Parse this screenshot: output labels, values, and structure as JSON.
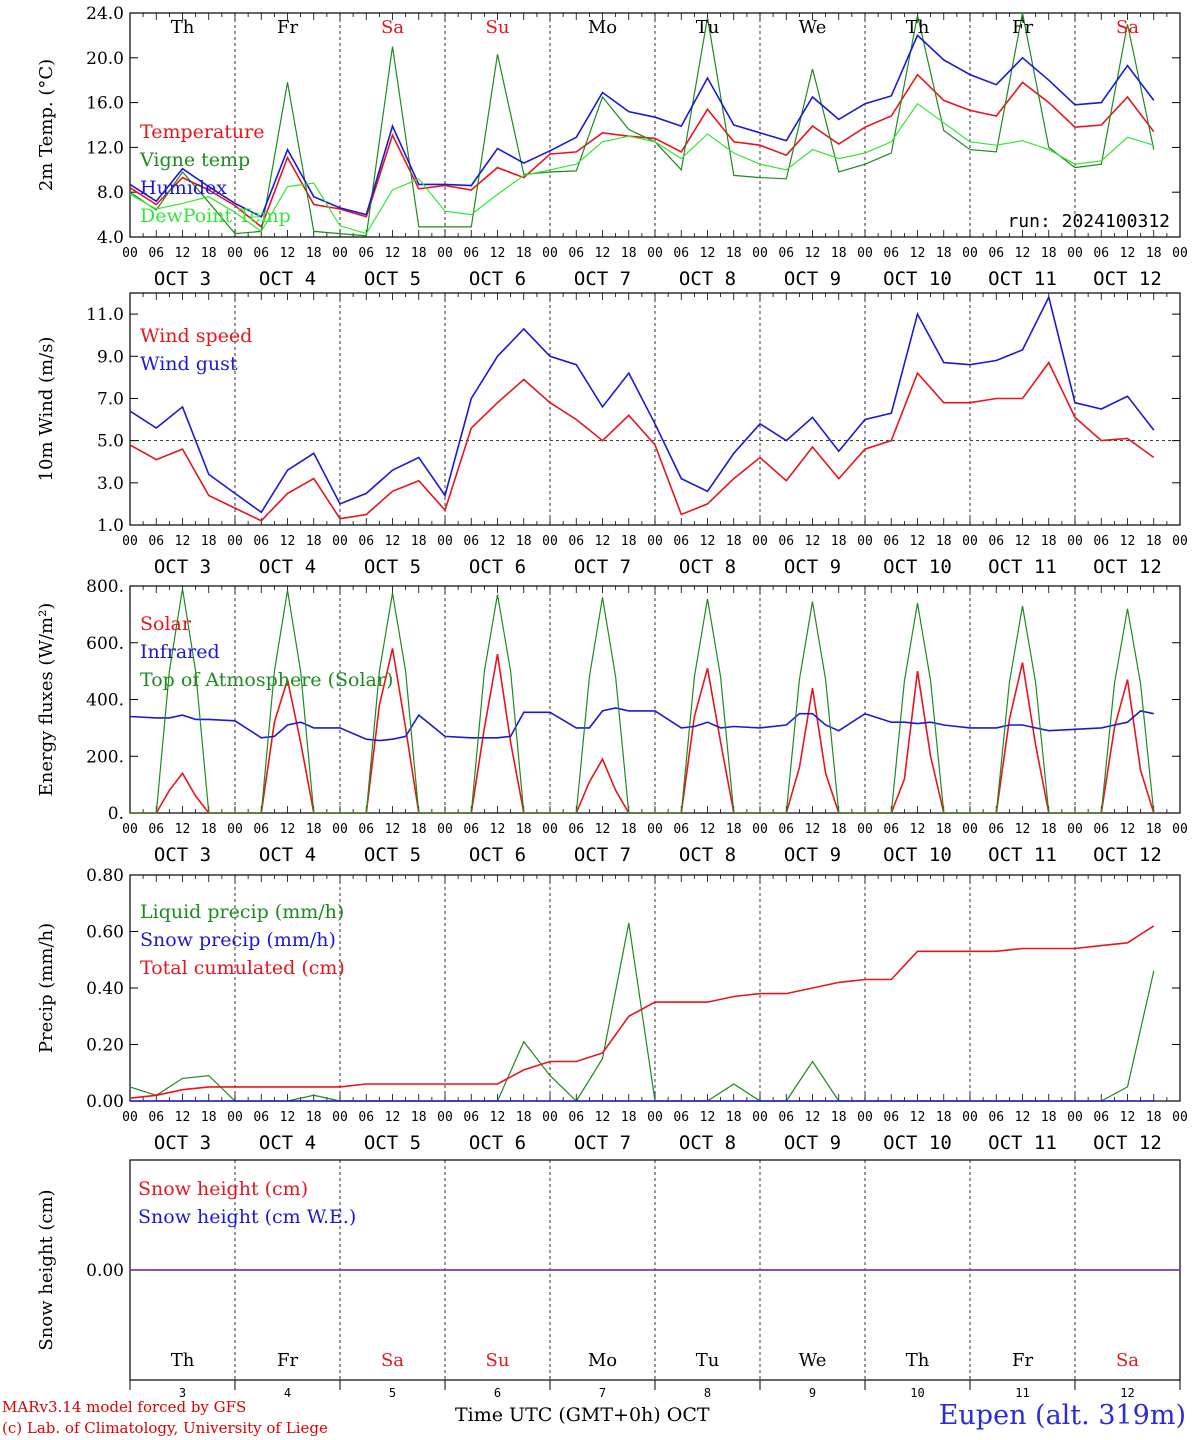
{
  "colors": {
    "red": "#e8141e",
    "darkgreen": "#1e8a1e",
    "blue": "#1a1ad6",
    "lightgreen": "#33e633",
    "purple": "#7a3aa0",
    "redday": "#e8141e"
  },
  "days": [
    {
      "abbr": "Th",
      "weekend": false,
      "date": "3"
    },
    {
      "abbr": "Fr",
      "weekend": false,
      "date": "4"
    },
    {
      "abbr": "Sa",
      "weekend": true,
      "date": "5"
    },
    {
      "abbr": "Su",
      "weekend": true,
      "date": "6"
    },
    {
      "abbr": "Mo",
      "weekend": false,
      "date": "7"
    },
    {
      "abbr": "Tu",
      "weekend": false,
      "date": "8"
    },
    {
      "abbr": "We",
      "weekend": false,
      "date": "9"
    },
    {
      "abbr": "Th",
      "weekend": false,
      "date": "10"
    },
    {
      "abbr": "Fr",
      "weekend": false,
      "date": "11"
    },
    {
      "abbr": "Sa",
      "weekend": true,
      "date": "12"
    }
  ],
  "month_label": "OCT",
  "hour_labels": [
    "00",
    "06",
    "12",
    "18"
  ],
  "chart_data": [
    {
      "type": "line",
      "ylabel": "2m Temp. (°C)",
      "ylim": [
        4,
        24
      ],
      "yticks": [
        "4.0",
        "8.0",
        "12.0",
        "16.0",
        "20.0",
        "24.0"
      ],
      "annotation": "run: 2024100312",
      "x": [
        0,
        6,
        12,
        18,
        24,
        30,
        36,
        42,
        48,
        54,
        60,
        66,
        72,
        78,
        84,
        90,
        96,
        102,
        108,
        114,
        120,
        126,
        132,
        138,
        144,
        150,
        156,
        162,
        168,
        174,
        180,
        186,
        192,
        198,
        204,
        210,
        216,
        222,
        228,
        234
      ],
      "series": [
        {
          "name": "Temperature",
          "color": "red",
          "values": [
            8.4,
            6.9,
            9.3,
            8.2,
            6.8,
            4.9,
            11.1,
            6.9,
            6.5,
            5.8,
            13.1,
            8.3,
            8.6,
            8.2,
            10.2,
            9.3,
            11.4,
            11.6,
            13.3,
            13.0,
            12.8,
            11.6,
            15.4,
            12.5,
            12.2,
            11.3,
            13.9,
            12.3,
            13.8,
            14.8,
            18.5,
            16.2,
            15.3,
            14.8,
            17.8,
            16.0,
            13.8,
            14.0,
            16.5,
            13.4
          ]
        },
        {
          "name": "Vigne temp",
          "color": "darkgreen",
          "values": [
            8.0,
            6.4,
            9.8,
            7.1,
            4.3,
            4.5,
            17.8,
            4.5,
            4.3,
            4.1,
            21.0,
            4.9,
            4.9,
            4.9,
            20.3,
            9.6,
            9.8,
            9.9,
            16.5,
            13.6,
            12.5,
            10.0,
            23.6,
            9.5,
            9.3,
            9.2,
            19.0,
            9.8,
            10.5,
            11.5,
            23.8,
            13.5,
            11.8,
            11.6,
            24.0,
            12.0,
            10.2,
            10.5,
            23.0,
            11.8
          ]
        },
        {
          "name": "Humidex",
          "color": "blue",
          "values": [
            8.7,
            7.2,
            10.1,
            8.5,
            7.0,
            5.8,
            11.8,
            7.6,
            6.6,
            6.0,
            13.9,
            8.7,
            8.7,
            8.6,
            11.9,
            10.6,
            11.7,
            12.9,
            16.9,
            15.2,
            14.7,
            13.9,
            18.2,
            14.0,
            13.3,
            12.6,
            16.5,
            14.5,
            15.9,
            16.6,
            22.0,
            19.8,
            18.5,
            17.6,
            20.0,
            18.0,
            15.8,
            16.0,
            19.3,
            16.2
          ]
        },
        {
          "name": "DewPoint Temp",
          "color": "lightgreen",
          "values": [
            7.8,
            6.5,
            7.0,
            7.6,
            6.2,
            4.5,
            8.5,
            8.8,
            5.0,
            4.3,
            8.2,
            9.2,
            6.3,
            6.0,
            7.8,
            9.5,
            10.0,
            10.5,
            12.5,
            13.0,
            12.5,
            11.0,
            13.2,
            11.5,
            10.5,
            10.0,
            11.8,
            11.0,
            11.5,
            12.5,
            15.9,
            14.2,
            12.5,
            12.2,
            12.6,
            11.8,
            10.5,
            10.8,
            12.9,
            12.2
          ]
        }
      ]
    },
    {
      "type": "line",
      "ylabel": "10m Wind (m/s)",
      "ylim": [
        1,
        12
      ],
      "yticks": [
        "1.0",
        "3.0",
        "5.0",
        "7.0",
        "9.0",
        "11.0"
      ],
      "ref_line": 5.0,
      "x": [
        0,
        6,
        12,
        18,
        24,
        30,
        36,
        42,
        48,
        54,
        60,
        66,
        72,
        78,
        84,
        90,
        96,
        102,
        108,
        114,
        120,
        126,
        132,
        138,
        144,
        150,
        156,
        162,
        168,
        174,
        180,
        186,
        192,
        198,
        204,
        210,
        216,
        222,
        228,
        234
      ],
      "series": [
        {
          "name": "Wind speed",
          "color": "red",
          "values": [
            4.8,
            4.1,
            4.6,
            2.4,
            1.8,
            1.2,
            2.5,
            3.2,
            1.3,
            1.5,
            2.6,
            3.1,
            1.7,
            5.6,
            6.8,
            7.9,
            6.8,
            6.0,
            5.0,
            6.2,
            4.8,
            1.5,
            2.0,
            3.2,
            4.2,
            3.1,
            4.7,
            3.2,
            4.6,
            5.0,
            8.2,
            6.8,
            6.8,
            7.0,
            7.0,
            8.7,
            6.1,
            5.0,
            5.1,
            4.2
          ]
        },
        {
          "name": "Wind gust",
          "color": "blue",
          "values": [
            6.4,
            5.6,
            6.6,
            3.4,
            2.5,
            1.6,
            3.6,
            4.4,
            2.0,
            2.5,
            3.6,
            4.2,
            2.4,
            7.0,
            9.0,
            10.3,
            9.0,
            8.6,
            6.6,
            8.2,
            5.8,
            3.2,
            2.6,
            4.4,
            5.8,
            5.0,
            6.1,
            4.5,
            6.0,
            6.3,
            11.0,
            8.7,
            8.6,
            8.8,
            9.3,
            11.8,
            6.8,
            6.5,
            7.1,
            5.5
          ]
        }
      ]
    },
    {
      "type": "line",
      "ylabel": "Energy fluxes (W/m²)",
      "ylim": [
        0,
        800
      ],
      "yticks": [
        "0.",
        "200.",
        "400.",
        "600.",
        "800."
      ],
      "x": [
        0,
        6,
        9,
        12,
        15,
        18,
        24,
        30,
        33,
        36,
        39,
        42,
        48,
        54,
        57,
        60,
        63,
        66,
        72,
        78,
        81,
        84,
        87,
        90,
        96,
        102,
        105,
        108,
        111,
        114,
        120,
        126,
        129,
        132,
        135,
        138,
        144,
        150,
        153,
        156,
        159,
        162,
        168,
        174,
        177,
        180,
        183,
        186,
        192,
        198,
        201,
        204,
        207,
        210,
        216,
        222,
        225,
        228,
        231,
        234
      ],
      "series": [
        {
          "name": "Solar",
          "color": "red",
          "values": [
            0,
            0,
            80,
            140,
            60,
            0,
            0,
            0,
            320,
            470,
            250,
            0,
            0,
            0,
            380,
            580,
            300,
            0,
            0,
            0,
            300,
            560,
            250,
            0,
            0,
            0,
            110,
            190,
            80,
            0,
            0,
            0,
            340,
            510,
            250,
            0,
            0,
            0,
            160,
            440,
            140,
            0,
            0,
            0,
            120,
            500,
            200,
            0,
            0,
            0,
            330,
            530,
            240,
            0,
            0,
            0,
            300,
            470,
            150,
            0
          ]
        },
        {
          "name": "Infrared",
          "color": "blue",
          "values": [
            340,
            335,
            335,
            345,
            330,
            330,
            325,
            265,
            270,
            310,
            320,
            300,
            300,
            260,
            255,
            260,
            270,
            345,
            270,
            265,
            265,
            265,
            270,
            355,
            355,
            300,
            300,
            360,
            370,
            360,
            360,
            300,
            305,
            320,
            300,
            305,
            300,
            310,
            350,
            350,
            310,
            290,
            350,
            320,
            320,
            315,
            320,
            310,
            300,
            300,
            310,
            310,
            300,
            290,
            295,
            300,
            310,
            320,
            360,
            350
          ]
        },
        {
          "name": "Top of Atmosphere (Solar)",
          "color": "darkgreen",
          "values": [
            0,
            0,
            500,
            790,
            500,
            0,
            0,
            0,
            500,
            785,
            500,
            0,
            0,
            0,
            500,
            775,
            500,
            0,
            0,
            0,
            500,
            770,
            500,
            0,
            0,
            0,
            480,
            760,
            480,
            0,
            0,
            0,
            480,
            755,
            480,
            0,
            0,
            0,
            470,
            745,
            470,
            0,
            0,
            0,
            465,
            740,
            465,
            0,
            0,
            0,
            460,
            730,
            460,
            0,
            0,
            0,
            455,
            720,
            455,
            0
          ]
        }
      ]
    },
    {
      "type": "line",
      "ylabel": "Precip (mm/h)",
      "ylim": [
        0,
        0.8
      ],
      "yticks": [
        "0.00",
        "0.20",
        "0.40",
        "0.60",
        "0.80"
      ],
      "x": [
        0,
        6,
        12,
        18,
        24,
        30,
        36,
        42,
        48,
        54,
        60,
        66,
        72,
        78,
        84,
        90,
        96,
        102,
        108,
        114,
        120,
        126,
        132,
        138,
        144,
        150,
        156,
        162,
        168,
        174,
        180,
        186,
        192,
        198,
        204,
        210,
        216,
        222,
        228,
        234
      ],
      "series": [
        {
          "name": "Liquid precip (mm/h)",
          "color": "darkgreen",
          "values": [
            0.05,
            0.02,
            0.08,
            0.09,
            0.0,
            0.0,
            0.0,
            0.02,
            0.0,
            0.0,
            0.0,
            0.0,
            0.0,
            0.0,
            0.0,
            0.21,
            0.09,
            0.0,
            0.15,
            0.63,
            0.0,
            0.0,
            0.0,
            0.06,
            0.0,
            0.0,
            0.14,
            0.0,
            0.0,
            0.0,
            0.0,
            0.0,
            0.0,
            0.0,
            0.0,
            0.0,
            0.0,
            0.0,
            0.05,
            0.46
          ]
        },
        {
          "name": "Snow precip (mm/h)",
          "color": "blue",
          "values": [
            0,
            0,
            0,
            0,
            0,
            0,
            0,
            0,
            0,
            0,
            0,
            0,
            0,
            0,
            0,
            0,
            0,
            0,
            0,
            0,
            0,
            0,
            0,
            0,
            0,
            0,
            0,
            0,
            0,
            0,
            0,
            0,
            0,
            0,
            0,
            0,
            0,
            0,
            0,
            0
          ]
        },
        {
          "name": "Total cumulated (cm)",
          "color": "red",
          "values": [
            0.01,
            0.02,
            0.04,
            0.05,
            0.05,
            0.05,
            0.05,
            0.05,
            0.05,
            0.06,
            0.06,
            0.06,
            0.06,
            0.06,
            0.06,
            0.11,
            0.14,
            0.14,
            0.17,
            0.3,
            0.35,
            0.35,
            0.35,
            0.37,
            0.38,
            0.38,
            0.4,
            0.42,
            0.43,
            0.43,
            0.53,
            0.53,
            0.53,
            0.53,
            0.54,
            0.54,
            0.54,
            0.55,
            0.56,
            0.62
          ]
        }
      ]
    },
    {
      "type": "line",
      "ylabel": "Snow height (cm)",
      "ylim": [
        -1,
        1
      ],
      "yticks": [
        "0.00"
      ],
      "x": [
        0,
        240
      ],
      "series": [
        {
          "name": "Snow height (cm)",
          "color": "red",
          "values": [
            0,
            0
          ]
        },
        {
          "name": "Snow height (cm W.E.)",
          "color": "blue",
          "values": [
            0,
            0
          ]
        }
      ]
    }
  ],
  "footer": {
    "credit1": "MARv3.14 model forced by GFS",
    "credit2": "(c) Lab. of Climatology, University of Liege",
    "xtitle": "Time UTC (GMT+0h)",
    "xunit": "OCT",
    "station": "Eupen (alt. 319m)"
  }
}
